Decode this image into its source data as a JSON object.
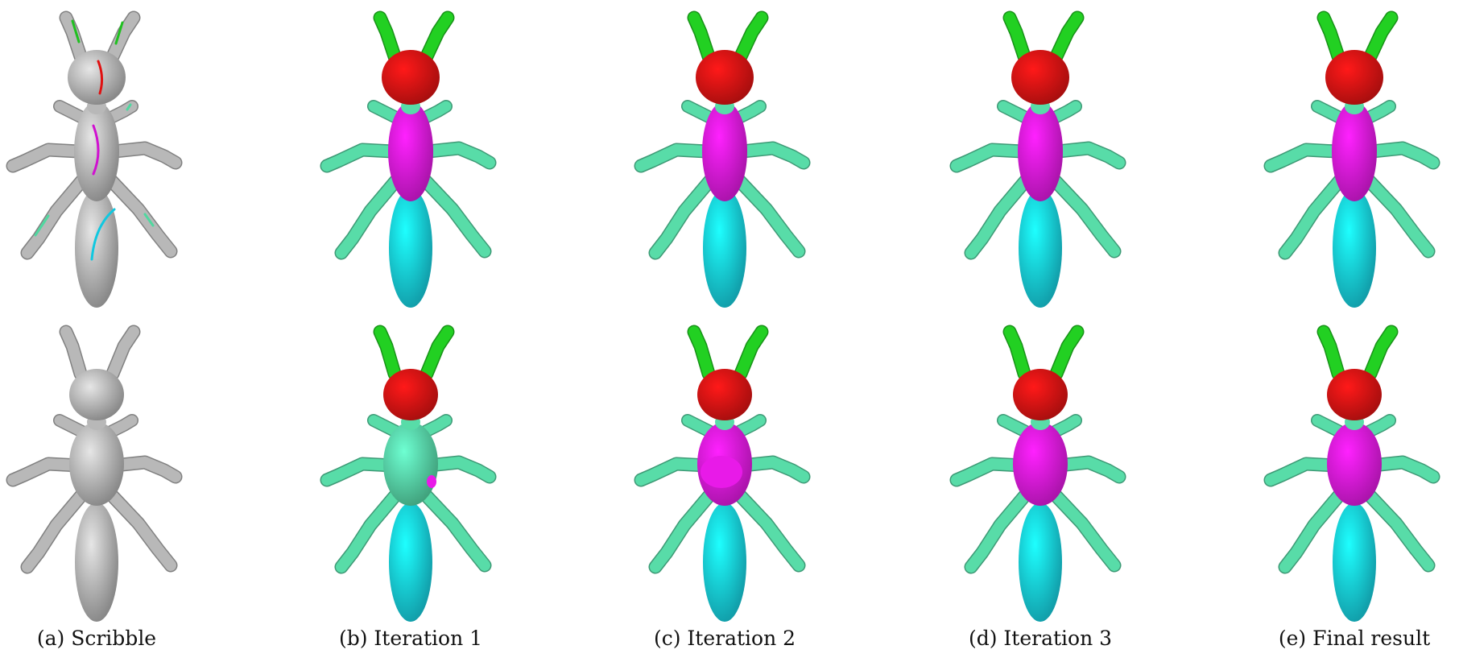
{
  "figure": {
    "columns": [
      {
        "id": "a",
        "caption": "(a) Scribble",
        "kind": "input"
      },
      {
        "id": "b",
        "caption": "(b) Iteration 1",
        "kind": "segmented"
      },
      {
        "id": "c",
        "caption": "(c) Iteration 2",
        "kind": "segmented"
      },
      {
        "id": "d",
        "caption": "(d) Iteration 3",
        "kind": "segmented"
      },
      {
        "id": "e",
        "caption": "(e) Final result",
        "kind": "segmented"
      }
    ],
    "rows": [
      "top",
      "bottom"
    ],
    "colors": {
      "mesh_gray": "#b8b8b8",
      "legs": "#58dca8",
      "antennae": "#22d022",
      "head": "#e41414",
      "thorax": "#e81ae8",
      "abdomen": "#18d6e6",
      "scribble_red": "#e01010",
      "scribble_magenta": "#d010d0",
      "scribble_cyan": "#10c8e0",
      "scribble_green": "#20c020",
      "scribble_mint": "#50d8a0"
    }
  }
}
